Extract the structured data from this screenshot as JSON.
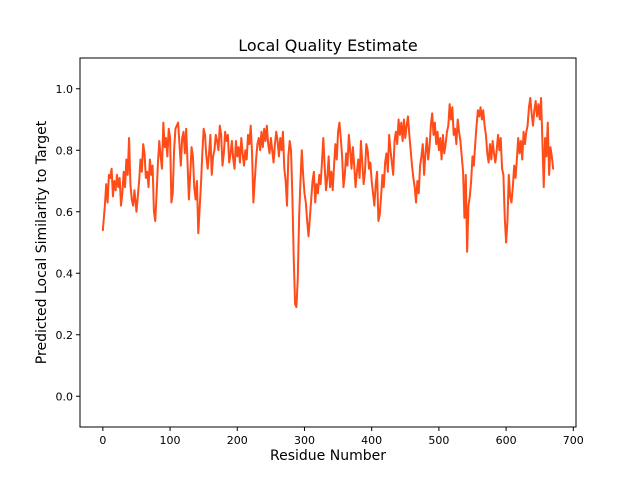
{
  "chart_data": {
    "type": "line",
    "title": "Local Quality Estimate",
    "xlabel": "Residue Number",
    "ylabel": "Predicted Local Similarity to Target",
    "xlim": [
      -34,
      704
    ],
    "ylim": [
      -0.1,
      1.1
    ],
    "xticks": [
      0,
      100,
      200,
      300,
      400,
      500,
      600,
      700
    ],
    "yticks": [
      0.0,
      0.2,
      0.4,
      0.6,
      0.8,
      1.0
    ],
    "ytick_labels": [
      "0.0",
      "0.2",
      "0.4",
      "0.6",
      "0.8",
      "1.0"
    ],
    "grid": false,
    "legend": false,
    "line_color": "#ff4c19",
    "series": [
      {
        "x": [
          0,
          3,
          5,
          7,
          9,
          11,
          13,
          15,
          17,
          19,
          21,
          23,
          25,
          27,
          29,
          31,
          33,
          35,
          37,
          39,
          41,
          43,
          45,
          47,
          50,
          52,
          54,
          56,
          58,
          60,
          62,
          64,
          66,
          68,
          70,
          72,
          74,
          76,
          78,
          80,
          82,
          84,
          86,
          88,
          90,
          92,
          94,
          96,
          98,
          100,
          102,
          104,
          106,
          108,
          110,
          112,
          114,
          116,
          118,
          120,
          122,
          124,
          126,
          128,
          130,
          132,
          134,
          136,
          138,
          140,
          142,
          144,
          146,
          148,
          150,
          152,
          154,
          156,
          158,
          160,
          162,
          164,
          166,
          168,
          170,
          172,
          174,
          176,
          178,
          180,
          182,
          184,
          186,
          188,
          190,
          192,
          194,
          196,
          198,
          200,
          202,
          204,
          206,
          208,
          210,
          212,
          214,
          216,
          218,
          220,
          222,
          224,
          226,
          228,
          230,
          232,
          234,
          236,
          238,
          240,
          242,
          244,
          246,
          248,
          250,
          252,
          254,
          256,
          258,
          260,
          262,
          264,
          266,
          268,
          270,
          272,
          274,
          276,
          278,
          280,
          282,
          284,
          286,
          288,
          290,
          292,
          294,
          296,
          298,
          300,
          302,
          304,
          306,
          308,
          310,
          312,
          314,
          316,
          318,
          320,
          322,
          324,
          326,
          328,
          330,
          332,
          334,
          336,
          338,
          340,
          342,
          344,
          346,
          348,
          350,
          352,
          354,
          356,
          358,
          360,
          362,
          364,
          366,
          368,
          370,
          372,
          374,
          376,
          378,
          380,
          382,
          384,
          386,
          388,
          390,
          392,
          394,
          396,
          398,
          400,
          402,
          404,
          406,
          408,
          410,
          412,
          414,
          416,
          418,
          420,
          422,
          424,
          426,
          428,
          430,
          432,
          434,
          436,
          438,
          440,
          442,
          444,
          446,
          448,
          450,
          452,
          454,
          456,
          458,
          460,
          462,
          464,
          466,
          468,
          470,
          472,
          474,
          476,
          478,
          480,
          482,
          484,
          486,
          488,
          490,
          492,
          494,
          496,
          498,
          500,
          502,
          504,
          506,
          508,
          510,
          512,
          514,
          516,
          518,
          520,
          522,
          524,
          526,
          528,
          530,
          532,
          534,
          536,
          538,
          540,
          542,
          544,
          546,
          548,
          550,
          552,
          554,
          556,
          558,
          560,
          562,
          564,
          566,
          568,
          570,
          572,
          574,
          576,
          578,
          580,
          582,
          584,
          586,
          588,
          590,
          592,
          594,
          596,
          598,
          600,
          602,
          604,
          606,
          608,
          610,
          612,
          614,
          616,
          618,
          620,
          622,
          624,
          626,
          628,
          630,
          632,
          634,
          636,
          638,
          640,
          642,
          644,
          646,
          648,
          650,
          652,
          654,
          656,
          658,
          660,
          662,
          664,
          666,
          668,
          670
        ],
        "y": [
          0.54,
          0.62,
          0.69,
          0.63,
          0.72,
          0.71,
          0.74,
          0.65,
          0.7,
          0.67,
          0.72,
          0.68,
          0.71,
          0.62,
          0.66,
          0.73,
          0.68,
          0.77,
          0.72,
          0.84,
          0.69,
          0.64,
          0.62,
          0.67,
          0.6,
          0.65,
          0.7,
          0.77,
          0.73,
          0.82,
          0.79,
          0.71,
          0.73,
          0.68,
          0.77,
          0.72,
          0.75,
          0.6,
          0.57,
          0.66,
          0.76,
          0.83,
          0.78,
          0.74,
          0.89,
          0.81,
          0.84,
          0.78,
          0.87,
          0.84,
          0.63,
          0.66,
          0.8,
          0.87,
          0.88,
          0.89,
          0.82,
          0.75,
          0.84,
          0.86,
          0.79,
          0.87,
          0.76,
          0.64,
          0.72,
          0.81,
          0.78,
          0.68,
          0.64,
          0.7,
          0.53,
          0.61,
          0.69,
          0.79,
          0.87,
          0.85,
          0.78,
          0.74,
          0.79,
          0.85,
          0.72,
          0.78,
          0.8,
          0.85,
          0.83,
          0.8,
          0.88,
          0.85,
          0.75,
          0.79,
          0.86,
          0.83,
          0.85,
          0.76,
          0.79,
          0.83,
          0.77,
          0.74,
          0.83,
          0.78,
          0.81,
          0.76,
          0.84,
          0.79,
          0.75,
          0.8,
          0.77,
          0.85,
          0.82,
          0.88,
          0.79,
          0.63,
          0.7,
          0.77,
          0.82,
          0.84,
          0.8,
          0.86,
          0.81,
          0.87,
          0.83,
          0.88,
          0.82,
          0.79,
          0.84,
          0.8,
          0.76,
          0.82,
          0.86,
          0.83,
          0.78,
          0.84,
          0.8,
          0.86,
          0.74,
          0.7,
          0.62,
          0.78,
          0.83,
          0.8,
          0.65,
          0.45,
          0.3,
          0.29,
          0.38,
          0.58,
          0.7,
          0.8,
          0.72,
          0.66,
          0.63,
          0.57,
          0.52,
          0.58,
          0.64,
          0.7,
          0.73,
          0.63,
          0.69,
          0.66,
          0.72,
          0.69,
          0.76,
          0.84,
          0.75,
          0.67,
          0.71,
          0.78,
          0.68,
          0.73,
          0.67,
          0.75,
          0.82,
          0.77,
          0.86,
          0.89,
          0.84,
          0.78,
          0.68,
          0.72,
          0.79,
          0.75,
          0.85,
          0.8,
          0.74,
          0.81,
          0.75,
          0.68,
          0.73,
          0.77,
          0.71,
          0.83,
          0.76,
          0.69,
          0.73,
          0.82,
          0.8,
          0.74,
          0.76,
          0.7,
          0.66,
          0.62,
          0.69,
          0.73,
          0.57,
          0.59,
          0.65,
          0.72,
          0.68,
          0.76,
          0.79,
          0.73,
          0.85,
          0.8,
          0.76,
          0.72,
          0.83,
          0.86,
          0.82,
          0.9,
          0.85,
          0.89,
          0.83,
          0.9,
          0.84,
          0.88,
          0.91,
          0.85,
          0.8,
          0.75,
          0.71,
          0.68,
          0.63,
          0.7,
          0.66,
          0.75,
          0.78,
          0.82,
          0.72,
          0.79,
          0.84,
          0.77,
          0.81,
          0.88,
          0.92,
          0.85,
          0.89,
          0.82,
          0.86,
          0.8,
          0.84,
          0.77,
          0.85,
          0.79,
          0.82,
          0.86,
          0.88,
          0.95,
          0.9,
          0.94,
          0.85,
          0.87,
          0.82,
          0.9,
          0.86,
          0.83,
          0.78,
          0.73,
          0.58,
          0.72,
          0.47,
          0.62,
          0.65,
          0.7,
          0.78,
          0.75,
          0.82,
          0.88,
          0.93,
          0.91,
          0.94,
          0.9,
          0.93,
          0.88,
          0.85,
          0.79,
          0.76,
          0.82,
          0.77,
          0.83,
          0.79,
          0.76,
          0.8,
          0.85,
          0.8,
          0.84,
          0.74,
          0.72,
          0.58,
          0.5,
          0.57,
          0.72,
          0.65,
          0.63,
          0.68,
          0.75,
          0.71,
          0.77,
          0.84,
          0.79,
          0.83,
          0.77,
          0.86,
          0.82,
          0.86,
          0.88,
          0.94,
          0.97,
          0.92,
          0.88,
          0.93,
          0.96,
          0.91,
          0.95,
          0.9,
          0.97,
          0.83,
          0.68,
          0.84,
          0.78,
          0.89,
          0.72,
          0.81,
          0.78,
          0.74
        ]
      }
    ]
  }
}
